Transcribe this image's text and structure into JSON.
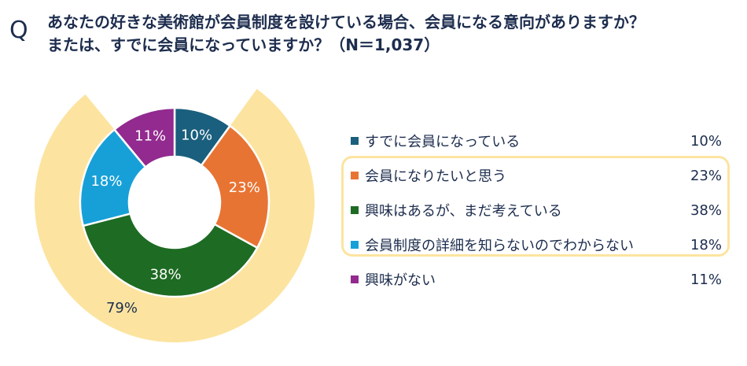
{
  "header": {
    "q_label": "Q",
    "title_line1": "あなたの好きな美術館が会員制度を設けている場合、会員になる意向がありますか？",
    "title_line2": "または、すでに会員になっていますか？（N＝1,037）"
  },
  "chart_data": {
    "type": "pie",
    "title": "あなたの好きな美術館が会員制度を設けている場合、会員になる意向がありますか？ または、すでに会員になっていますか？（N＝1,037）",
    "n": 1037,
    "unit": "%",
    "categories": [
      "すでに会員になっている",
      "会員になりたいと思う",
      "興味はあるが、まだ考えている",
      "会員制度の詳細を知らないのでわからない",
      "興味がない"
    ],
    "values": [
      10,
      23,
      38,
      18,
      11
    ],
    "value_labels": [
      "10%",
      "23%",
      "38%",
      "18%",
      "11%"
    ],
    "colors": [
      "#1a5f7d",
      "#e87433",
      "#1e6b23",
      "#17a0d8",
      "#922a8f"
    ],
    "outer_group": {
      "members": [
        "会員になりたいと思う",
        "興味はあるが、まだ考えている",
        "会員制度の詳細を知らないのでわからない"
      ],
      "value": 79,
      "label": "79%",
      "color": "#fce4a0"
    },
    "legend_position": "right"
  }
}
